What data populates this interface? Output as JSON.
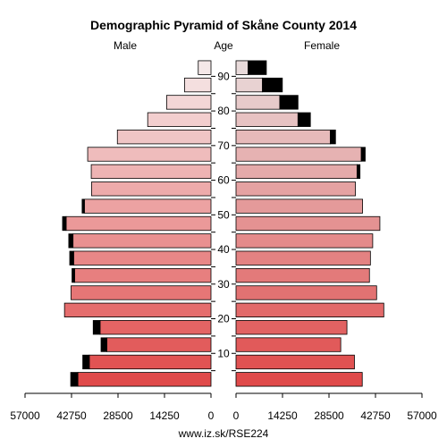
{
  "chart_data": {
    "type": "bar",
    "title": "Demographic Pyramid of Skåne County 2014",
    "left_label": "Male",
    "center_label": "Age",
    "right_label": "Female",
    "source": "www.iz.sk/RSE224",
    "xlim": [
      0,
      57000
    ],
    "x_ticks": [
      57000,
      42750,
      28500,
      14250,
      0
    ],
    "x_tick_labels": [
      "57000",
      "42750",
      "28500",
      "14250",
      "0"
    ],
    "age_ticks": [
      10,
      20,
      30,
      40,
      50,
      60,
      70,
      80,
      90
    ],
    "age_tick_labels": [
      "10",
      "20",
      "30",
      "40",
      "50",
      "60",
      "70",
      "80",
      "90"
    ],
    "age_groups": [
      "0-4",
      "5-9",
      "10-14",
      "15-19",
      "20-24",
      "25-29",
      "30-34",
      "35-39",
      "40-44",
      "45-49",
      "50-54",
      "55-59",
      "60-64",
      "65-69",
      "70-74",
      "75-79",
      "80-84",
      "85-89",
      "90+"
    ],
    "series": [
      {
        "name": "Male",
        "values": [
          40800,
          37300,
          31900,
          34000,
          44900,
          42900,
          41800,
          42100,
          42300,
          44400,
          38800,
          36600,
          36700,
          37800,
          28700,
          19400,
          13600,
          8100,
          3900
        ],
        "black": [
          2200,
          2000,
          1800,
          2100,
          0,
          0,
          800,
          1200,
          1300,
          1100,
          700,
          0,
          0,
          0,
          0,
          0,
          0,
          0,
          0
        ]
      },
      {
        "name": "Female",
        "values": [
          38700,
          36300,
          32100,
          34000,
          45300,
          43100,
          40900,
          41200,
          41900,
          44100,
          38800,
          36600,
          37100,
          38400,
          28900,
          19000,
          13400,
          8100,
          3700
        ],
        "black": [
          0,
          0,
          0,
          0,
          0,
          0,
          0,
          0,
          0,
          0,
          0,
          0,
          900,
          1200,
          1600,
          3800,
          5600,
          6100,
          5600
        ]
      }
    ]
  }
}
